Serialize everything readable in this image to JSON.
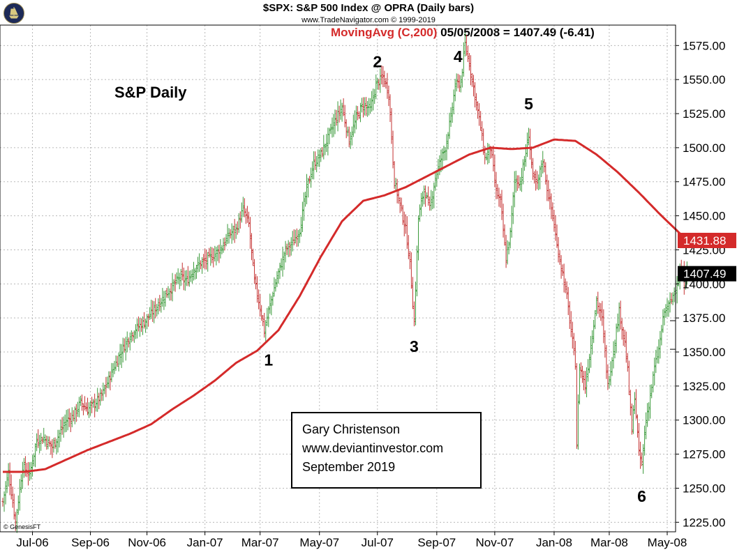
{
  "title": "$SPX:  S&P 500 Index @ OPRA  (Daily bars)",
  "subtitle": "www.TradeNavigator.com © 1999-2019",
  "moving_avg": {
    "label": "MovingAvg (C,200)",
    "value_text": "05/05/2008 = 1407.49 (-6.41)"
  },
  "annotation": "S&P Daily",
  "credit": {
    "name": "Gary Christenson",
    "site": "www.deviantinvestor.com",
    "date": "September 2019"
  },
  "copyright": "© GenesisFT",
  "colors": {
    "up_bar": "#3a9a3a",
    "down_bar": "#c43030",
    "moving_avg": "#d42a2a",
    "grid": "#b8b8b8",
    "last_price_tag": "#000000",
    "ma_tag": "#d42a2a"
  },
  "chart_data": {
    "type": "line",
    "chart_style": "ohlc-bars",
    "x_tick_labels": [
      "Jul-06",
      "Sep-06",
      "Nov-06",
      "Jan-07",
      "Mar-07",
      "May-07",
      "Jul-07",
      "Sep-07",
      "Nov-07",
      "Jan-08",
      "Mar-08",
      "May-08"
    ],
    "y_tick_labels": [
      "1575.00",
      "1550.00",
      "1525.00",
      "1500.00",
      "1475.00",
      "1450.00",
      "1425.00",
      "1400.00",
      "1375.00",
      "1350.00",
      "1325.00",
      "1300.00",
      "1275.00",
      "1250.00",
      "1225.00"
    ],
    "ylim": [
      1218,
      1590
    ],
    "grid": true,
    "y_axis_side": "right",
    "x_index_range": [
      0,
      470
    ],
    "x_tick_index": [
      21,
      62,
      102,
      143,
      182,
      224,
      265,
      307,
      348,
      390,
      429,
      470
    ],
    "price_anchors": [
      [
        0,
        1240
      ],
      [
        4,
        1262
      ],
      [
        9,
        1225
      ],
      [
        14,
        1266
      ],
      [
        19,
        1260
      ],
      [
        24,
        1285
      ],
      [
        29,
        1287
      ],
      [
        35,
        1280
      ],
      [
        40,
        1290
      ],
      [
        45,
        1300
      ],
      [
        50,
        1303
      ],
      [
        55,
        1313
      ],
      [
        60,
        1308
      ],
      [
        65,
        1312
      ],
      [
        70,
        1318
      ],
      [
        75,
        1330
      ],
      [
        80,
        1342
      ],
      [
        85,
        1353
      ],
      [
        90,
        1362
      ],
      [
        95,
        1368
      ],
      [
        100,
        1372
      ],
      [
        105,
        1378
      ],
      [
        110,
        1385
      ],
      [
        115,
        1392
      ],
      [
        120,
        1398
      ],
      [
        125,
        1405
      ],
      [
        130,
        1402
      ],
      [
        135,
        1411
      ],
      [
        140,
        1415
      ],
      [
        145,
        1418
      ],
      [
        150,
        1422
      ],
      [
        155,
        1427
      ],
      [
        160,
        1436
      ],
      [
        165,
        1440
      ],
      [
        170,
        1455
      ],
      [
        174,
        1444
      ],
      [
        178,
        1402
      ],
      [
        183,
        1378
      ],
      [
        185,
        1365
      ],
      [
        188,
        1380
      ],
      [
        192,
        1397
      ],
      [
        195,
        1408
      ],
      [
        200,
        1425
      ],
      [
        205,
        1430
      ],
      [
        210,
        1440
      ],
      [
        215,
        1470
      ],
      [
        220,
        1488
      ],
      [
        225,
        1495
      ],
      [
        230,
        1507
      ],
      [
        235,
        1520
      ],
      [
        240,
        1530
      ],
      [
        245,
        1505
      ],
      [
        250,
        1522
      ],
      [
        255,
        1532
      ],
      [
        260,
        1528
      ],
      [
        264,
        1546
      ],
      [
        269,
        1552
      ],
      [
        273,
        1540
      ],
      [
        277,
        1475
      ],
      [
        281,
        1458
      ],
      [
        285,
        1440
      ],
      [
        288,
        1415
      ],
      [
        291,
        1372
      ],
      [
        294,
        1448
      ],
      [
        298,
        1470
      ],
      [
        302,
        1455
      ],
      [
        306,
        1478
      ],
      [
        310,
        1492
      ],
      [
        313,
        1500
      ],
      [
        317,
        1522
      ],
      [
        320,
        1546
      ],
      [
        324,
        1548
      ],
      [
        327,
        1576
      ],
      [
        330,
        1562
      ],
      [
        334,
        1538
      ],
      [
        338,
        1515
      ],
      [
        341,
        1492
      ],
      [
        345,
        1500
      ],
      [
        349,
        1468
      ],
      [
        352,
        1460
      ],
      [
        356,
        1418
      ],
      [
        359,
        1437
      ],
      [
        362,
        1476
      ],
      [
        366,
        1475
      ],
      [
        369,
        1490
      ],
      [
        372,
        1510
      ],
      [
        375,
        1478
      ],
      [
        378,
        1472
      ],
      [
        382,
        1492
      ],
      [
        385,
        1470
      ],
      [
        389,
        1450
      ],
      [
        392,
        1428
      ],
      [
        396,
        1408
      ],
      [
        399,
        1390
      ],
      [
        402,
        1365
      ],
      [
        405,
        1342
      ],
      [
        406,
        1282
      ],
      [
        408,
        1340
      ],
      [
        412,
        1325
      ],
      [
        416,
        1355
      ],
      [
        420,
        1388
      ],
      [
        424,
        1374
      ],
      [
        428,
        1325
      ],
      [
        432,
        1352
      ],
      [
        436,
        1380
      ],
      [
        440,
        1357
      ],
      [
        442,
        1336
      ],
      [
        445,
        1292
      ],
      [
        447,
        1318
      ],
      [
        450,
        1275
      ],
      [
        452,
        1268
      ],
      [
        455,
        1300
      ],
      [
        458,
        1318
      ],
      [
        461,
        1338
      ],
      [
        464,
        1352
      ],
      [
        468,
        1380
      ],
      [
        472,
        1385
      ],
      [
        476,
        1398
      ],
      [
        480,
        1410
      ],
      [
        482,
        1400
      ],
      [
        484,
        1413
      ]
    ],
    "moving_avg_anchors": [
      [
        0,
        1262
      ],
      [
        15,
        1262
      ],
      [
        30,
        1264
      ],
      [
        45,
        1271
      ],
      [
        60,
        1278
      ],
      [
        75,
        1284
      ],
      [
        90,
        1290
      ],
      [
        105,
        1297
      ],
      [
        120,
        1308
      ],
      [
        135,
        1318
      ],
      [
        150,
        1329
      ],
      [
        165,
        1342
      ],
      [
        180,
        1351
      ],
      [
        195,
        1366
      ],
      [
        210,
        1391
      ],
      [
        225,
        1420
      ],
      [
        240,
        1446
      ],
      [
        255,
        1461
      ],
      [
        270,
        1465
      ],
      [
        285,
        1471
      ],
      [
        300,
        1479
      ],
      [
        315,
        1487
      ],
      [
        330,
        1495
      ],
      [
        345,
        1500
      ],
      [
        360,
        1499
      ],
      [
        375,
        1500
      ],
      [
        390,
        1506
      ],
      [
        405,
        1505
      ],
      [
        420,
        1495
      ],
      [
        435,
        1482
      ],
      [
        450,
        1467
      ],
      [
        465,
        1451
      ],
      [
        484,
        1432
      ]
    ],
    "last_price": "1407.49",
    "moving_avg_last": "1431.88",
    "wave_labels": [
      {
        "text": "1",
        "x": 188,
        "y": 1340
      },
      {
        "text": "2",
        "x": 265,
        "y": 1559
      },
      {
        "text": "3",
        "x": 291,
        "y": 1350
      },
      {
        "text": "4",
        "x": 322,
        "y": 1563
      },
      {
        "text": "5",
        "x": 372,
        "y": 1528
      },
      {
        "text": "6",
        "x": 452,
        "y": 1240
      }
    ]
  }
}
